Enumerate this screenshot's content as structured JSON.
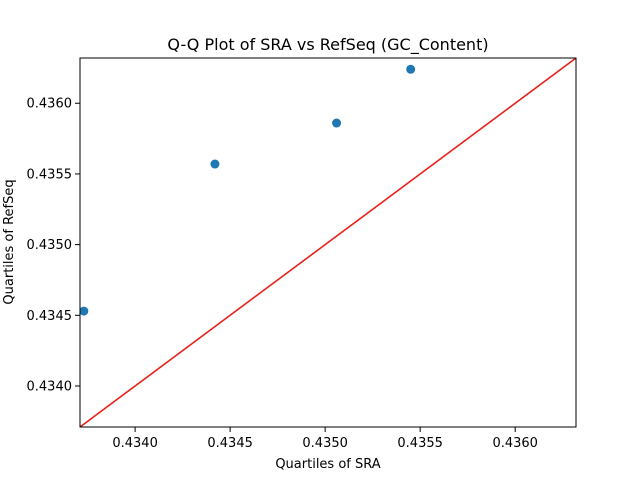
{
  "chart_data": {
    "type": "scatter",
    "title": "Q-Q Plot of SRA vs RefSeq (GC_Content)",
    "xlabel": "Quartiles of SRA",
    "ylabel": "Quartiles of RefSeq",
    "xlim": [
      0.43371,
      0.43632
    ],
    "ylim": [
      0.43371,
      0.43632
    ],
    "x_ticks": [
      0.434,
      0.4345,
      0.435,
      0.4355,
      0.436
    ],
    "x_tick_labels": [
      "0.4340",
      "0.4345",
      "0.4350",
      "0.4355",
      "0.4360"
    ],
    "y_ticks": [
      0.434,
      0.4345,
      0.435,
      0.4355,
      0.436
    ],
    "y_tick_labels": [
      "0.4340",
      "0.4345",
      "0.4350",
      "0.4355",
      "0.4360"
    ],
    "grid": false,
    "legend": "none",
    "series": [
      {
        "type": "scatter",
        "color": "#1f77b4",
        "points": [
          {
            "x": 0.43373,
            "y": 0.43453
          },
          {
            "x": 0.43442,
            "y": 0.43557
          },
          {
            "x": 0.43506,
            "y": 0.43586
          },
          {
            "x": 0.43545,
            "y": 0.43624
          }
        ]
      },
      {
        "type": "line",
        "color": "#e8221a",
        "points": [
          {
            "x": 0.43371,
            "y": 0.43371
          },
          {
            "x": 0.43632,
            "y": 0.43632
          }
        ]
      }
    ]
  }
}
